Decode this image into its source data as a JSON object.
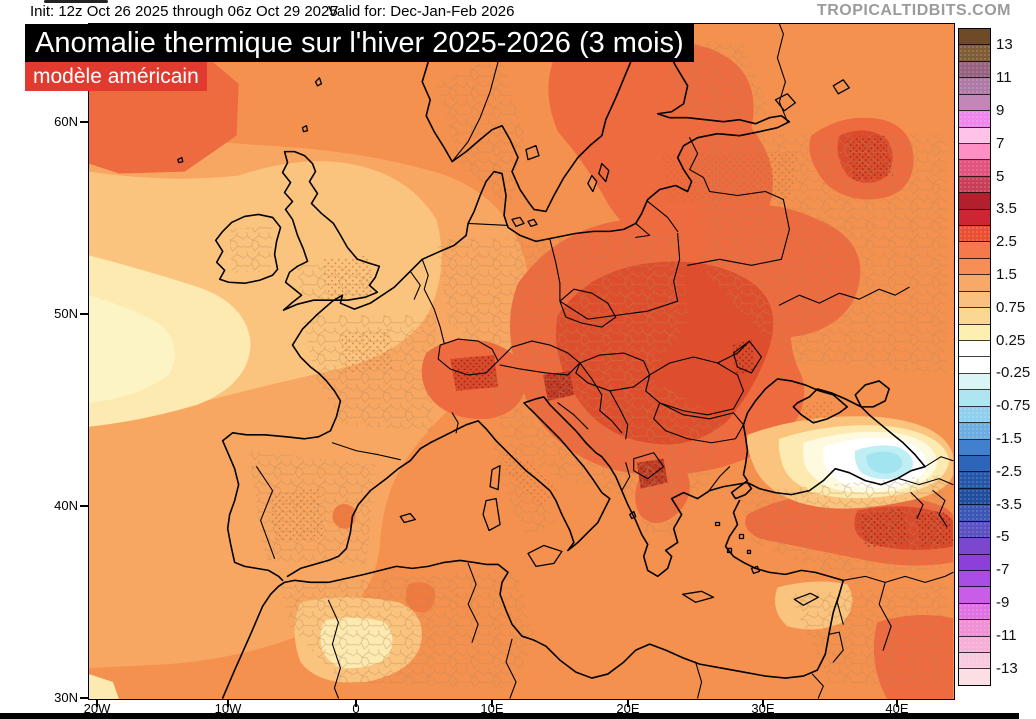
{
  "header": {
    "init_text": "Init: 12z Oct 26 2025 through 06z Oct 29 2025",
    "valid_text": "Valid for: Dec-Jan-Feb 2026",
    "brand": "TROPICALTIDBITS.COM"
  },
  "title": {
    "main": "Anomalie thermique sur l'hiver 2025-2026 (3 mois)",
    "subtitle": "modèle américain",
    "title_bg": "#000000",
    "subtitle_bg": "#e13b2f"
  },
  "map": {
    "region": "Europe",
    "field": "seasonal temperature anomaly",
    "x_tick_labels": [
      "20W",
      "10W",
      "0",
      "10E",
      "20E",
      "30E",
      "40E"
    ],
    "y_tick_labels": [
      "60N",
      "50N",
      "40N",
      "30N"
    ],
    "dominant_anomaly_color": "#f5914f",
    "warm_core_color": "#de4e2d",
    "cool_spot_color": "#a2e4ef"
  },
  "colorbar": {
    "labels": [
      "13",
      "11",
      "9",
      "7",
      "5",
      "3.5",
      "2.5",
      "1.5",
      "0.75",
      "0.25",
      "-0.25",
      "-0.75",
      "-1.5",
      "-2.5",
      "-3.5",
      "-5",
      "-7",
      "-9",
      "-11",
      "-13"
    ],
    "cells": [
      "#6e4a26",
      "#7f5c36",
      "#97627f",
      "#b07aa6",
      "#c287b6",
      "#ee86ee",
      "#ffc2e8",
      "#ff90c6",
      "#e2527e",
      "#c83f58",
      "#b2202c",
      "#cd2531",
      "#e94f31",
      "#f47a4b",
      "#f68e55",
      "#f8a968",
      "#fac07e",
      "#fbd891",
      "#fdeeb2",
      "#ffffff",
      "#ffffff",
      "#d9f5f5",
      "#aee5f1",
      "#90cfec",
      "#6cace0",
      "#4080cc",
      "#2d65b9",
      "#2457a9",
      "#1f4e9f",
      "#3c56b6",
      "#5b51c1",
      "#7b47cd",
      "#8d40d9",
      "#a94ee5",
      "#c95de9",
      "#e071e1",
      "#ef90d5",
      "#f6afd7",
      "#f9c9df",
      "#fcdfe5"
    ],
    "stippled_cells": [
      1,
      2,
      3,
      5,
      8,
      9,
      12,
      23,
      24,
      27,
      28,
      29,
      30,
      35,
      36,
      37,
      38
    ]
  }
}
